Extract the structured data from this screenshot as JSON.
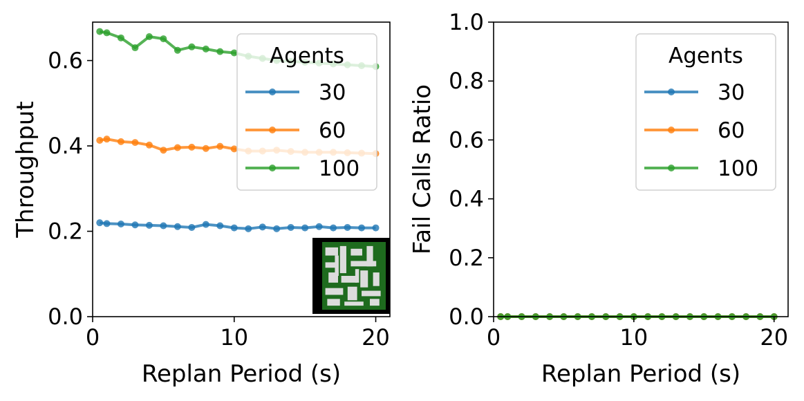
{
  "chart_data": [
    {
      "type": "line",
      "xlabel": "Replan Period (s)",
      "ylabel": "Throughput",
      "xlim": [
        0,
        21
      ],
      "ylim": [
        0,
        0.69
      ],
      "xticks": [
        "0",
        "10",
        "20"
      ],
      "yticks": [
        "0.0",
        "0.2",
        "0.4",
        "0.6"
      ],
      "legend": {
        "title": "Agents",
        "placement": "top-right"
      },
      "grid": false,
      "inset": "map-thumbnail",
      "x": [
        0.5,
        1,
        2,
        3,
        4,
        5,
        6,
        7,
        8,
        9,
        10,
        11,
        12,
        13,
        14,
        15,
        16,
        17,
        18,
        19,
        20
      ],
      "series": [
        {
          "name": "30",
          "color": "#1f77b4",
          "values": [
            0.22,
            0.218,
            0.217,
            0.215,
            0.214,
            0.213,
            0.211,
            0.209,
            0.216,
            0.213,
            0.208,
            0.206,
            0.21,
            0.206,
            0.209,
            0.208,
            0.211,
            0.208,
            0.209,
            0.208,
            0.208
          ]
        },
        {
          "name": "60",
          "color": "#ff7f0e",
          "values": [
            0.413,
            0.416,
            0.41,
            0.408,
            0.402,
            0.39,
            0.396,
            0.397,
            0.394,
            0.399,
            0.393,
            0.388,
            0.388,
            0.39,
            0.387,
            0.385,
            0.385,
            0.385,
            0.384,
            0.383,
            0.382
          ]
        },
        {
          "name": "100",
          "color": "#2ca02c",
          "values": [
            0.668,
            0.665,
            0.653,
            0.63,
            0.656,
            0.651,
            0.624,
            0.632,
            0.627,
            0.621,
            0.618,
            0.61,
            0.605,
            0.6,
            0.598,
            0.596,
            0.594,
            0.592,
            0.59,
            0.588,
            0.586
          ]
        }
      ]
    },
    {
      "type": "line",
      "xlabel": "Replan Period (s)",
      "ylabel": "Fail Calls Ratio",
      "xlim": [
        0,
        21
      ],
      "ylim": [
        0,
        1.0
      ],
      "xticks": [
        "0",
        "10",
        "20"
      ],
      "yticks": [
        "0.0",
        "0.2",
        "0.4",
        "0.6",
        "0.8",
        "1.0"
      ],
      "legend": {
        "title": "Agents",
        "placement": "top-right"
      },
      "grid": false,
      "x": [
        0.5,
        1,
        2,
        3,
        4,
        5,
        6,
        7,
        8,
        9,
        10,
        11,
        12,
        13,
        14,
        15,
        16,
        17,
        18,
        19,
        20
      ],
      "series": [
        {
          "name": "30",
          "color": "#1f77b4",
          "values": [
            0,
            0,
            0,
            0,
            0,
            0,
            0,
            0,
            0,
            0,
            0,
            0,
            0,
            0,
            0,
            0,
            0,
            0,
            0,
            0,
            0
          ]
        },
        {
          "name": "60",
          "color": "#ff7f0e",
          "values": [
            0,
            0,
            0,
            0,
            0,
            0,
            0,
            0,
            0,
            0,
            0,
            0,
            0,
            0,
            0,
            0,
            0,
            0,
            0,
            0,
            0
          ]
        },
        {
          "name": "100",
          "color": "#2ca02c",
          "values": [
            0,
            0,
            0,
            0,
            0,
            0,
            0,
            0,
            0,
            0,
            0,
            0,
            0,
            0,
            0,
            0,
            0,
            0,
            0,
            0,
            0
          ]
        }
      ]
    }
  ]
}
